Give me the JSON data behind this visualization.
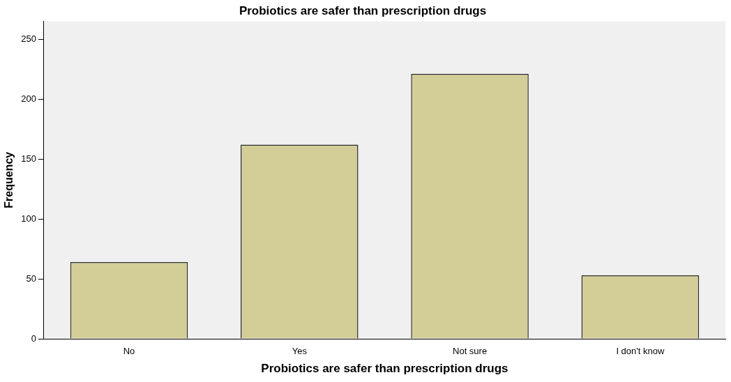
{
  "chart_data": {
    "type": "bar",
    "title": "Probiotics are safer than prescription drugs",
    "xlabel": "Probiotics are safer than prescription drugs",
    "ylabel": "Frequency",
    "categories": [
      "No",
      "Yes",
      "Not sure",
      "I don't know"
    ],
    "values": [
      64,
      162,
      221,
      53
    ],
    "color": "#d3ce97",
    "ylim": [
      0,
      265
    ],
    "yticks": [
      0,
      50,
      100,
      150,
      200,
      250
    ],
    "grid": false,
    "legend": false
  }
}
